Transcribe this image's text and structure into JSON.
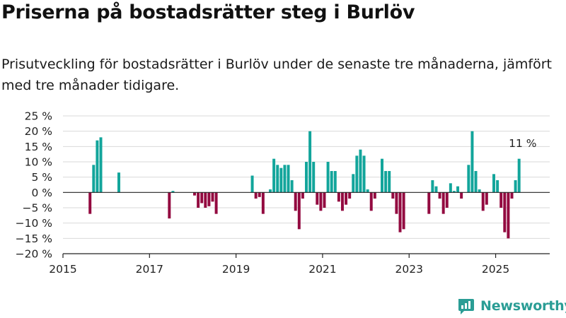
{
  "header": {
    "title": "Priserna på bostadsrätter steg i Burlöv",
    "subtitle": "Prisutveckling för bostadsrätter i Burlöv under de senaste tre månaderna, jämfört med tre månader tidigare."
  },
  "brand": {
    "name": "Newsworthy",
    "color": "#2a9d95"
  },
  "chart_data": {
    "type": "bar",
    "title": "",
    "xlabel": "",
    "ylabel": "",
    "x_unit": "month",
    "ylim": [
      -20,
      25
    ],
    "xlim": [
      "2015-01",
      "2026-04"
    ],
    "y_ticks": [
      25,
      20,
      15,
      10,
      5,
      0,
      -5,
      -10,
      -15,
      -20
    ],
    "y_tick_labels": [
      "25 %",
      "20 %",
      "15 %",
      "10 %",
      "5 %",
      "0 %",
      "−5 %",
      "−10 %",
      "−15 %",
      "−20 %"
    ],
    "x_ticks": [
      "2015-01",
      "2017-01",
      "2019-01",
      "2021-01",
      "2023-01",
      "2025-01"
    ],
    "x_tick_labels": [
      "2015",
      "2017",
      "2019",
      "2021",
      "2023",
      "2025"
    ],
    "grid": true,
    "colors": {
      "positive": "#12a59b",
      "negative": "#930a40"
    },
    "annotation": {
      "text": "11 %",
      "month": "2025-08"
    },
    "points": [
      [
        "2015-08",
        -7
      ],
      [
        "2015-09",
        9
      ],
      [
        "2015-10",
        17
      ],
      [
        "2015-11",
        18
      ],
      [
        "2016-04",
        6.5
      ],
      [
        "2017-06",
        -8.5
      ],
      [
        "2017-07",
        0.5
      ],
      [
        "2018-01",
        -1
      ],
      [
        "2018-02",
        -5
      ],
      [
        "2018-03",
        -3.5
      ],
      [
        "2018-04",
        -5
      ],
      [
        "2018-05",
        -4.5
      ],
      [
        "2018-06",
        -3
      ],
      [
        "2018-07",
        -7
      ],
      [
        "2019-05",
        5.5
      ],
      [
        "2019-06",
        -2
      ],
      [
        "2019-07",
        -1.5
      ],
      [
        "2019-08",
        -7
      ],
      [
        "2019-10",
        1
      ],
      [
        "2019-11",
        11
      ],
      [
        "2019-12",
        9
      ],
      [
        "2020-01",
        8
      ],
      [
        "2020-02",
        9
      ],
      [
        "2020-03",
        9
      ],
      [
        "2020-04",
        4
      ],
      [
        "2020-05",
        -6
      ],
      [
        "2020-06",
        -12
      ],
      [
        "2020-07",
        -2
      ],
      [
        "2020-08",
        10
      ],
      [
        "2020-09",
        20
      ],
      [
        "2020-10",
        10
      ],
      [
        "2020-11",
        -4
      ],
      [
        "2020-12",
        -6
      ],
      [
        "2021-01",
        -5
      ],
      [
        "2021-02",
        10
      ],
      [
        "2021-03",
        7
      ],
      [
        "2021-04",
        7
      ],
      [
        "2021-05",
        -3
      ],
      [
        "2021-06",
        -6
      ],
      [
        "2021-07",
        -4
      ],
      [
        "2021-08",
        -2
      ],
      [
        "2021-09",
        6
      ],
      [
        "2021-10",
        12
      ],
      [
        "2021-11",
        14
      ],
      [
        "2021-12",
        12
      ],
      [
        "2022-01",
        1
      ],
      [
        "2022-02",
        -6
      ],
      [
        "2022-03",
        -2
      ],
      [
        "2022-05",
        11
      ],
      [
        "2022-06",
        7
      ],
      [
        "2022-07",
        7
      ],
      [
        "2022-08",
        -2
      ],
      [
        "2022-09",
        -7
      ],
      [
        "2022-10",
        -13
      ],
      [
        "2022-11",
        -12
      ],
      [
        "2023-06",
        -7
      ],
      [
        "2023-07",
        4
      ],
      [
        "2023-08",
        2
      ],
      [
        "2023-09",
        -2
      ],
      [
        "2023-10",
        -7
      ],
      [
        "2023-11",
        -5
      ],
      [
        "2023-12",
        3
      ],
      [
        "2024-01",
        0.5
      ],
      [
        "2024-02",
        2
      ],
      [
        "2024-03",
        -2
      ],
      [
        "2024-05",
        9
      ],
      [
        "2024-06",
        20
      ],
      [
        "2024-07",
        7
      ],
      [
        "2024-08",
        1
      ],
      [
        "2024-09",
        -6
      ],
      [
        "2024-10",
        -4
      ],
      [
        "2024-12",
        6
      ],
      [
        "2025-01",
        4
      ],
      [
        "2025-02",
        -5
      ],
      [
        "2025-03",
        -13
      ],
      [
        "2025-04",
        -15
      ],
      [
        "2025-05",
        -2
      ],
      [
        "2025-06",
        4
      ],
      [
        "2025-07",
        11
      ]
    ]
  }
}
